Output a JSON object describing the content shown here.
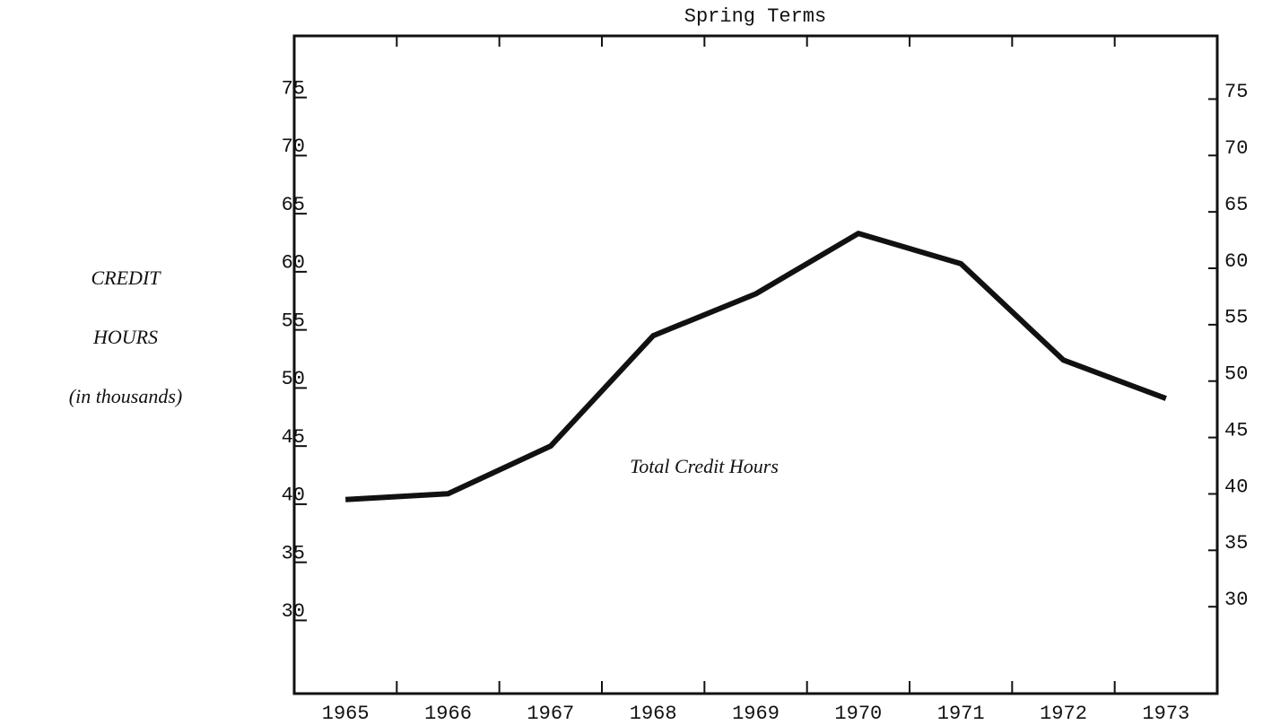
{
  "chart_data": {
    "type": "line",
    "title": "Spring Terms",
    "y_label": [
      "CREDIT",
      "HOURS",
      "(in thousands)"
    ],
    "annotation": "Total Credit Hours",
    "categories": [
      "1965",
      "1966",
      "1967",
      "1968",
      "1969",
      "1970",
      "1971",
      "1972",
      "1973"
    ],
    "series": [
      {
        "name": "Total Credit Hours",
        "color": "#111111",
        "values": [
          40.4,
          40.9,
          45.0,
          54.5,
          58.1,
          63.3,
          60.7,
          52.4,
          49.1
        ]
      }
    ],
    "ylim": [
      23.7,
      80.3
    ],
    "yticks": [
      30,
      35,
      40,
      45,
      50,
      55,
      60,
      65,
      70,
      75
    ],
    "y2lim": [
      22.3,
      80.6
    ],
    "y2ticks": [
      30,
      35,
      40,
      45,
      50,
      55,
      60,
      65,
      70,
      75
    ],
    "grid": false
  }
}
